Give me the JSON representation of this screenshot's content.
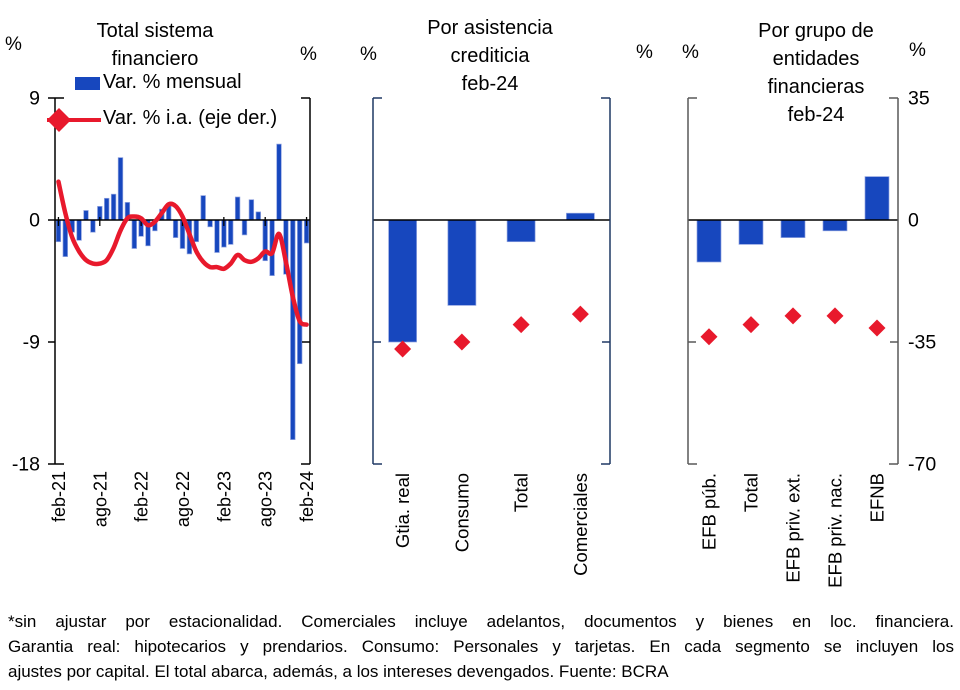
{
  "colors": {
    "bar_blue": "#1747BE",
    "bar_edge": "#8FA2E0",
    "line_red": "#E8192C",
    "zero_line": "#000000",
    "frame_black": "#000000",
    "frame_navy": "#1F3864",
    "frame_gray": "#595959"
  },
  "panels": [
    {
      "title_lines": [
        "Total sistema",
        "financiero"
      ],
      "pct_left": "%",
      "pct_right": "%",
      "legend": [
        {
          "label": "Var. % mensual",
          "marker": "blue-bar"
        },
        {
          "label": "Var. % i.a. (eje der.)",
          "marker": "red-line-diamond"
        }
      ],
      "y_axis_left_labels": [
        "9",
        "0",
        "-9",
        "-18"
      ]
    },
    {
      "title_lines": [
        "Por asistencia",
        "crediticia",
        "feb-24"
      ],
      "pct_left": "%",
      "pct_right": "%"
    },
    {
      "title_lines": [
        "Por grupo de",
        "entidades",
        "financieras",
        "feb-24"
      ],
      "pct_left": "%",
      "pct_right": "%",
      "y_axis_right_labels": [
        "35",
        "0",
        "-35",
        "-70"
      ]
    }
  ],
  "chart_data": [
    {
      "type": "bar",
      "title": "Total sistema financiero",
      "x": [
        "feb-21",
        "mar-21",
        "abr-21",
        "may-21",
        "jun-21",
        "jul-21",
        "ago-21",
        "sep-21",
        "oct-21",
        "nov-21",
        "dic-21",
        "ene-22",
        "feb-22",
        "mar-22",
        "abr-22",
        "may-22",
        "jun-22",
        "jul-22",
        "ago-22",
        "sep-22",
        "oct-22",
        "nov-22",
        "dic-22",
        "ene-23",
        "feb-23",
        "mar-23",
        "abr-23",
        "may-23",
        "jun-23",
        "jul-23",
        "ago-23",
        "sep-23",
        "oct-23",
        "nov-23",
        "dic-23",
        "ene-24",
        "feb-24"
      ],
      "x_axis_tick_labels": [
        "feb-21",
        "ago-21",
        "feb-22",
        "ago-22",
        "feb-23",
        "ago-23",
        "feb-24"
      ],
      "series": [
        {
          "name": "Var. % mensual",
          "type": "bar",
          "axis": "left",
          "values": [
            -1.6,
            -2.7,
            -0.9,
            -1.5,
            0.7,
            -0.9,
            1.0,
            1.6,
            1.9,
            4.6,
            1.3,
            -2.1,
            -1.2,
            -1.9,
            -0.8,
            0.8,
            1.2,
            -1.3,
            -2.1,
            -2.5,
            -1.6,
            1.8,
            -0.5,
            -2.4,
            -2.0,
            -1.8,
            1.7,
            -1.1,
            1.5,
            0.6,
            -3.0,
            -4.1,
            5.6,
            -4.0,
            -16.2,
            -10.6,
            -1.7
          ]
        },
        {
          "name": "Var. % i.a. (eje der.)",
          "type": "line",
          "axis": "right",
          "values": [
            11,
            2,
            -5,
            -9,
            -11.5,
            -12.5,
            -12.5,
            -11.5,
            -8,
            -3,
            0.5,
            1,
            0.5,
            -1.5,
            -0.5,
            2,
            4.5,
            4,
            1,
            -4,
            -9,
            -12,
            -13.5,
            -13.5,
            -14,
            -12.5,
            -10,
            -11.5,
            -12,
            -11,
            -9,
            -9.5,
            -4,
            -12,
            -22,
            -29,
            -30
          ]
        }
      ],
      "axes": {
        "left": {
          "min": -18,
          "max": 9,
          "ticks": [
            9,
            0,
            -9,
            -18
          ]
        },
        "right": {
          "min": -70,
          "max": 35,
          "ticks": [
            35,
            0,
            -35,
            -70
          ]
        }
      }
    },
    {
      "type": "bar",
      "title": "Por asistencia crediticia feb-24",
      "categories": [
        "Gtia. real",
        "Consumo",
        "Total",
        "Comerciales"
      ],
      "series": [
        {
          "name": "Var. % mensual",
          "type": "bar",
          "axis": "left",
          "values": [
            -9.0,
            -6.3,
            -1.6,
            0.5
          ]
        },
        {
          "name": "Var. % i.a. (eje der.)",
          "type": "scatter",
          "axis": "right",
          "values": [
            -37,
            -35,
            -30,
            -27
          ]
        }
      ],
      "axes": {
        "left": {
          "min": -18,
          "max": 9
        },
        "right": {
          "min": -70,
          "max": 35
        }
      }
    },
    {
      "type": "bar",
      "title": "Por grupo de entidades financieras feb-24",
      "categories": [
        "EFB púb.",
        "Total",
        "EFB priv. ext.",
        "EFB priv. nac.",
        "EFNB"
      ],
      "series": [
        {
          "name": "Var. % mensual",
          "type": "bar",
          "axis": "left",
          "values": [
            -3.1,
            -1.8,
            -1.3,
            -0.8,
            3.2
          ]
        },
        {
          "name": "Var. % i.a. (eje der.)",
          "type": "scatter",
          "axis": "right",
          "values": [
            -33.5,
            -30,
            -27.5,
            -27.5,
            -31
          ]
        }
      ],
      "axes": {
        "left": {
          "min": -18,
          "max": 9
        },
        "right": {
          "min": -70,
          "max": 35,
          "ticks": [
            35,
            0,
            -35,
            -70
          ]
        }
      }
    }
  ],
  "footnote": {
    "lines": [
      "*sin ajustar por estacionalidad. Comerciales incluye adelantos, documentos y bienes en loc. financiera.",
      "Garantia real: hipotecarios y prendarios. Consumo: Personales y tarjetas. En cada segmento se incluyen los",
      "ajustes por capital. El total abarca, además, a los intereses devengados. Fuente: BCRA"
    ]
  }
}
